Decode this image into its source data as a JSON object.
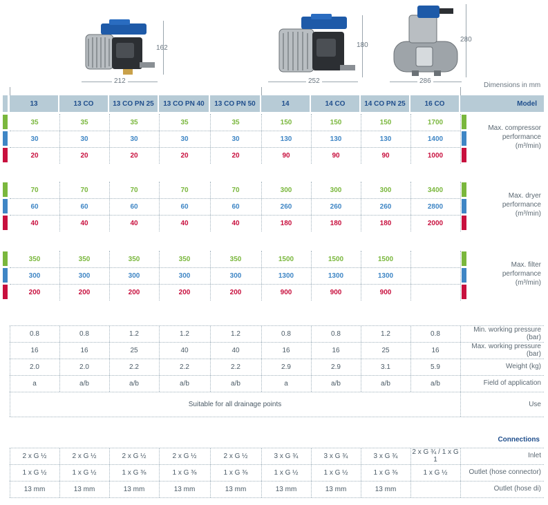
{
  "dimensions_note": "Dimensions in mm",
  "illustrations": [
    {
      "name": "13 series unit",
      "width_label": "212",
      "height_label": "162"
    },
    {
      "name": "14 series unit",
      "width_label": "252",
      "height_label": "180"
    },
    {
      "name": "16 series unit",
      "width_label": "286",
      "height_label": "280"
    }
  ],
  "model_header_label": "Model",
  "models": [
    "13",
    "13 CO",
    "13 CO PN 25",
    "13 CO PN 40",
    "13 CO PN 50",
    "14",
    "14 CO",
    "14 CO PN 25",
    "16 CO"
  ],
  "colors": {
    "green": "#7ab73d",
    "blue": "#3f86c5",
    "red": "#c8103e",
    "header_bg": "#b7cbd6",
    "header_text": "#1f4e8c"
  },
  "performance_groups": [
    {
      "label_lines": [
        "Max. compressor",
        "performance",
        "(m³/min)"
      ],
      "rows": [
        [
          "35",
          "35",
          "35",
          "35",
          "35",
          "150",
          "150",
          "150",
          "1700"
        ],
        [
          "30",
          "30",
          "30",
          "30",
          "30",
          "130",
          "130",
          "130",
          "1400"
        ],
        [
          "20",
          "20",
          "20",
          "20",
          "20",
          "90",
          "90",
          "90",
          "1000"
        ]
      ]
    },
    {
      "label_lines": [
        "Max. dryer",
        "performance",
        "(m³/min)"
      ],
      "rows": [
        [
          "70",
          "70",
          "70",
          "70",
          "70",
          "300",
          "300",
          "300",
          "3400"
        ],
        [
          "60",
          "60",
          "60",
          "60",
          "60",
          "260",
          "260",
          "260",
          "2800"
        ],
        [
          "40",
          "40",
          "40",
          "40",
          "40",
          "180",
          "180",
          "180",
          "2000"
        ]
      ]
    },
    {
      "label_lines": [
        "Max. filter",
        "performance",
        "(m³/min)"
      ],
      "rows": [
        [
          "350",
          "350",
          "350",
          "350",
          "350",
          "1500",
          "1500",
          "1500",
          ""
        ],
        [
          "300",
          "300",
          "300",
          "300",
          "300",
          "1300",
          "1300",
          "1300",
          ""
        ],
        [
          "200",
          "200",
          "200",
          "200",
          "200",
          "900",
          "900",
          "900",
          ""
        ]
      ]
    }
  ],
  "specs": [
    {
      "label": "Min. working pressure (bar)",
      "values": [
        "0.8",
        "0.8",
        "1.2",
        "1.2",
        "1.2",
        "0.8",
        "0.8",
        "1.2",
        "0.8"
      ]
    },
    {
      "label": "Max. working pressure (bar)",
      "values": [
        "16",
        "16",
        "25",
        "40",
        "40",
        "16",
        "16",
        "25",
        "16"
      ]
    },
    {
      "label": "Weight (kg)",
      "values": [
        "2.0",
        "2.0",
        "2.2",
        "2.2",
        "2.2",
        "2.9",
        "2.9",
        "3.1",
        "5.9"
      ]
    },
    {
      "label": "Field of application",
      "values": [
        "a",
        "a/b",
        "a/b",
        "a/b",
        "a/b",
        "a",
        "a/b",
        "a/b",
        "a/b"
      ]
    }
  ],
  "use_row": {
    "label": "Use",
    "value": "Suitable for all drainage points"
  },
  "connections_title": "Connections",
  "connections": [
    {
      "label": "Inlet",
      "values": [
        "2 x G ½",
        "2 x G ½",
        "2 x G ½",
        "2 x G ½",
        "2 x G ½",
        "3 x G ¾",
        "3 x G ¾",
        "3 x G ¾",
        "2 x G ¾ / 1 x G 1"
      ]
    },
    {
      "label": "Outlet (hose connector)",
      "values": [
        "1 x G ½",
        "1 x G ½",
        "1 x G ⅜",
        "1 x G ⅜",
        "1 x G ⅜",
        "1 x G ½",
        "1 x G ½",
        "1 x G ⅜",
        "1 x G ½"
      ]
    },
    {
      "label": "Outlet (hose di)",
      "values": [
        "13 mm",
        "13 mm",
        "13 mm",
        "13 mm",
        "13 mm",
        "13 mm",
        "13 mm",
        "13 mm",
        ""
      ]
    }
  ]
}
